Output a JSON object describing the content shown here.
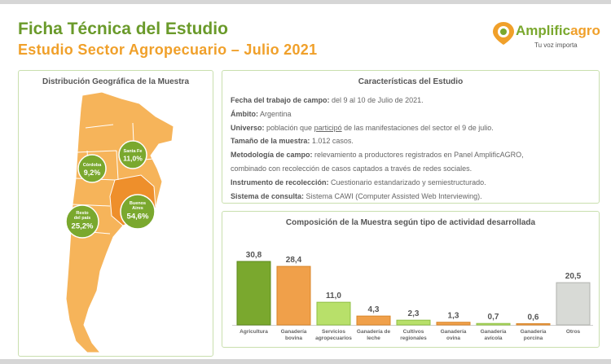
{
  "header": {
    "title": "Ficha Técnica del Estudio",
    "subtitle": "Estudio Sector Agropecuario – Julio 2021"
  },
  "logo": {
    "name_a": "Amplific",
    "name_b": "agro",
    "tagline": "Tu voz importa"
  },
  "map_panel": {
    "title": "Distribución Geográfica de la Muestra",
    "regions": [
      {
        "label_lines": [
          "Santa Fe"
        ],
        "value": "11,0%",
        "color": "#7aa82e"
      },
      {
        "label_lines": [
          "Córdoba"
        ],
        "value": "9,2%",
        "color": "#7aa82e"
      },
      {
        "label_lines": [
          "Buenos",
          "Aires"
        ],
        "value": "54,6%",
        "color": "#7aa82e"
      },
      {
        "label_lines": [
          "Resto",
          "del país"
        ],
        "value": "25,2%",
        "color": "#7aa82e"
      }
    ],
    "map_color": "#f6b45a",
    "highlight_color": "#ee8f2b"
  },
  "info_panel": {
    "title": "Características del Estudio",
    "rows": [
      {
        "label": "Fecha del trabajo de campo:",
        "text": " del 9 al 10 de Julio de 2021."
      },
      {
        "label": "Ámbito:",
        "text": " Argentina"
      },
      {
        "label": "Universo:",
        "text_a": " población que ",
        "text_u": "participó",
        "text_b": " de las manifestaciones del sector el 9 de julio."
      },
      {
        "label": "Tamaño de la muestra:",
        "text": " 1.012 casos."
      },
      {
        "label": "Metodología de campo:",
        "text": " relevamiento a productores registrados en Panel AmplificAGRO,"
      },
      {
        "label": "",
        "text": "combinado con recolección de casos captados a través de redes sociales."
      },
      {
        "label": "Instrumento de recolección:",
        "text": " Cuestionario estandarizado y semiestructurado."
      },
      {
        "label": "Sistema de consulta:",
        "text": " Sistema CAWI (Computer Assisted Web Interviewing)."
      }
    ]
  },
  "chart_data": {
    "type": "bar",
    "title": "Composición de la Muestra según tipo de actividad desarrollada",
    "categories": [
      [
        "Agricultura"
      ],
      [
        "Ganadería",
        "bovina"
      ],
      [
        "Servicios",
        "agropecuarios"
      ],
      [
        "Ganadería de",
        "leche"
      ],
      [
        "Cultivos",
        "regionales"
      ],
      [
        "Ganadería",
        "ovina"
      ],
      [
        "Ganadería",
        "avícola"
      ],
      [
        "Ganadería",
        "porcina"
      ],
      [
        "Otros"
      ]
    ],
    "values": [
      30.8,
      28.4,
      11.0,
      4.3,
      2.3,
      1.3,
      0.7,
      0.6,
      20.5
    ],
    "value_labels": [
      "30,8",
      "28,4",
      "11,0",
      "4,3",
      "2,3",
      "1,3",
      "0,7",
      "0,6",
      "20,5"
    ],
    "colors": [
      "#7aa82e",
      "#f0a04a",
      "#b8e06a",
      "#f0a04a",
      "#b8e06a",
      "#f0a04a",
      "#b8e06a",
      "#f0a04a",
      "#d8dad6"
    ],
    "stroke_colors": [
      "#5d8a1e",
      "#d8862a",
      "#8fbf45",
      "#d8862a",
      "#8fbf45",
      "#d8862a",
      "#8fbf45",
      "#d8862a",
      "#b0b2ae"
    ],
    "ylim": [
      0,
      32
    ],
    "grid": false,
    "legend": "none"
  }
}
